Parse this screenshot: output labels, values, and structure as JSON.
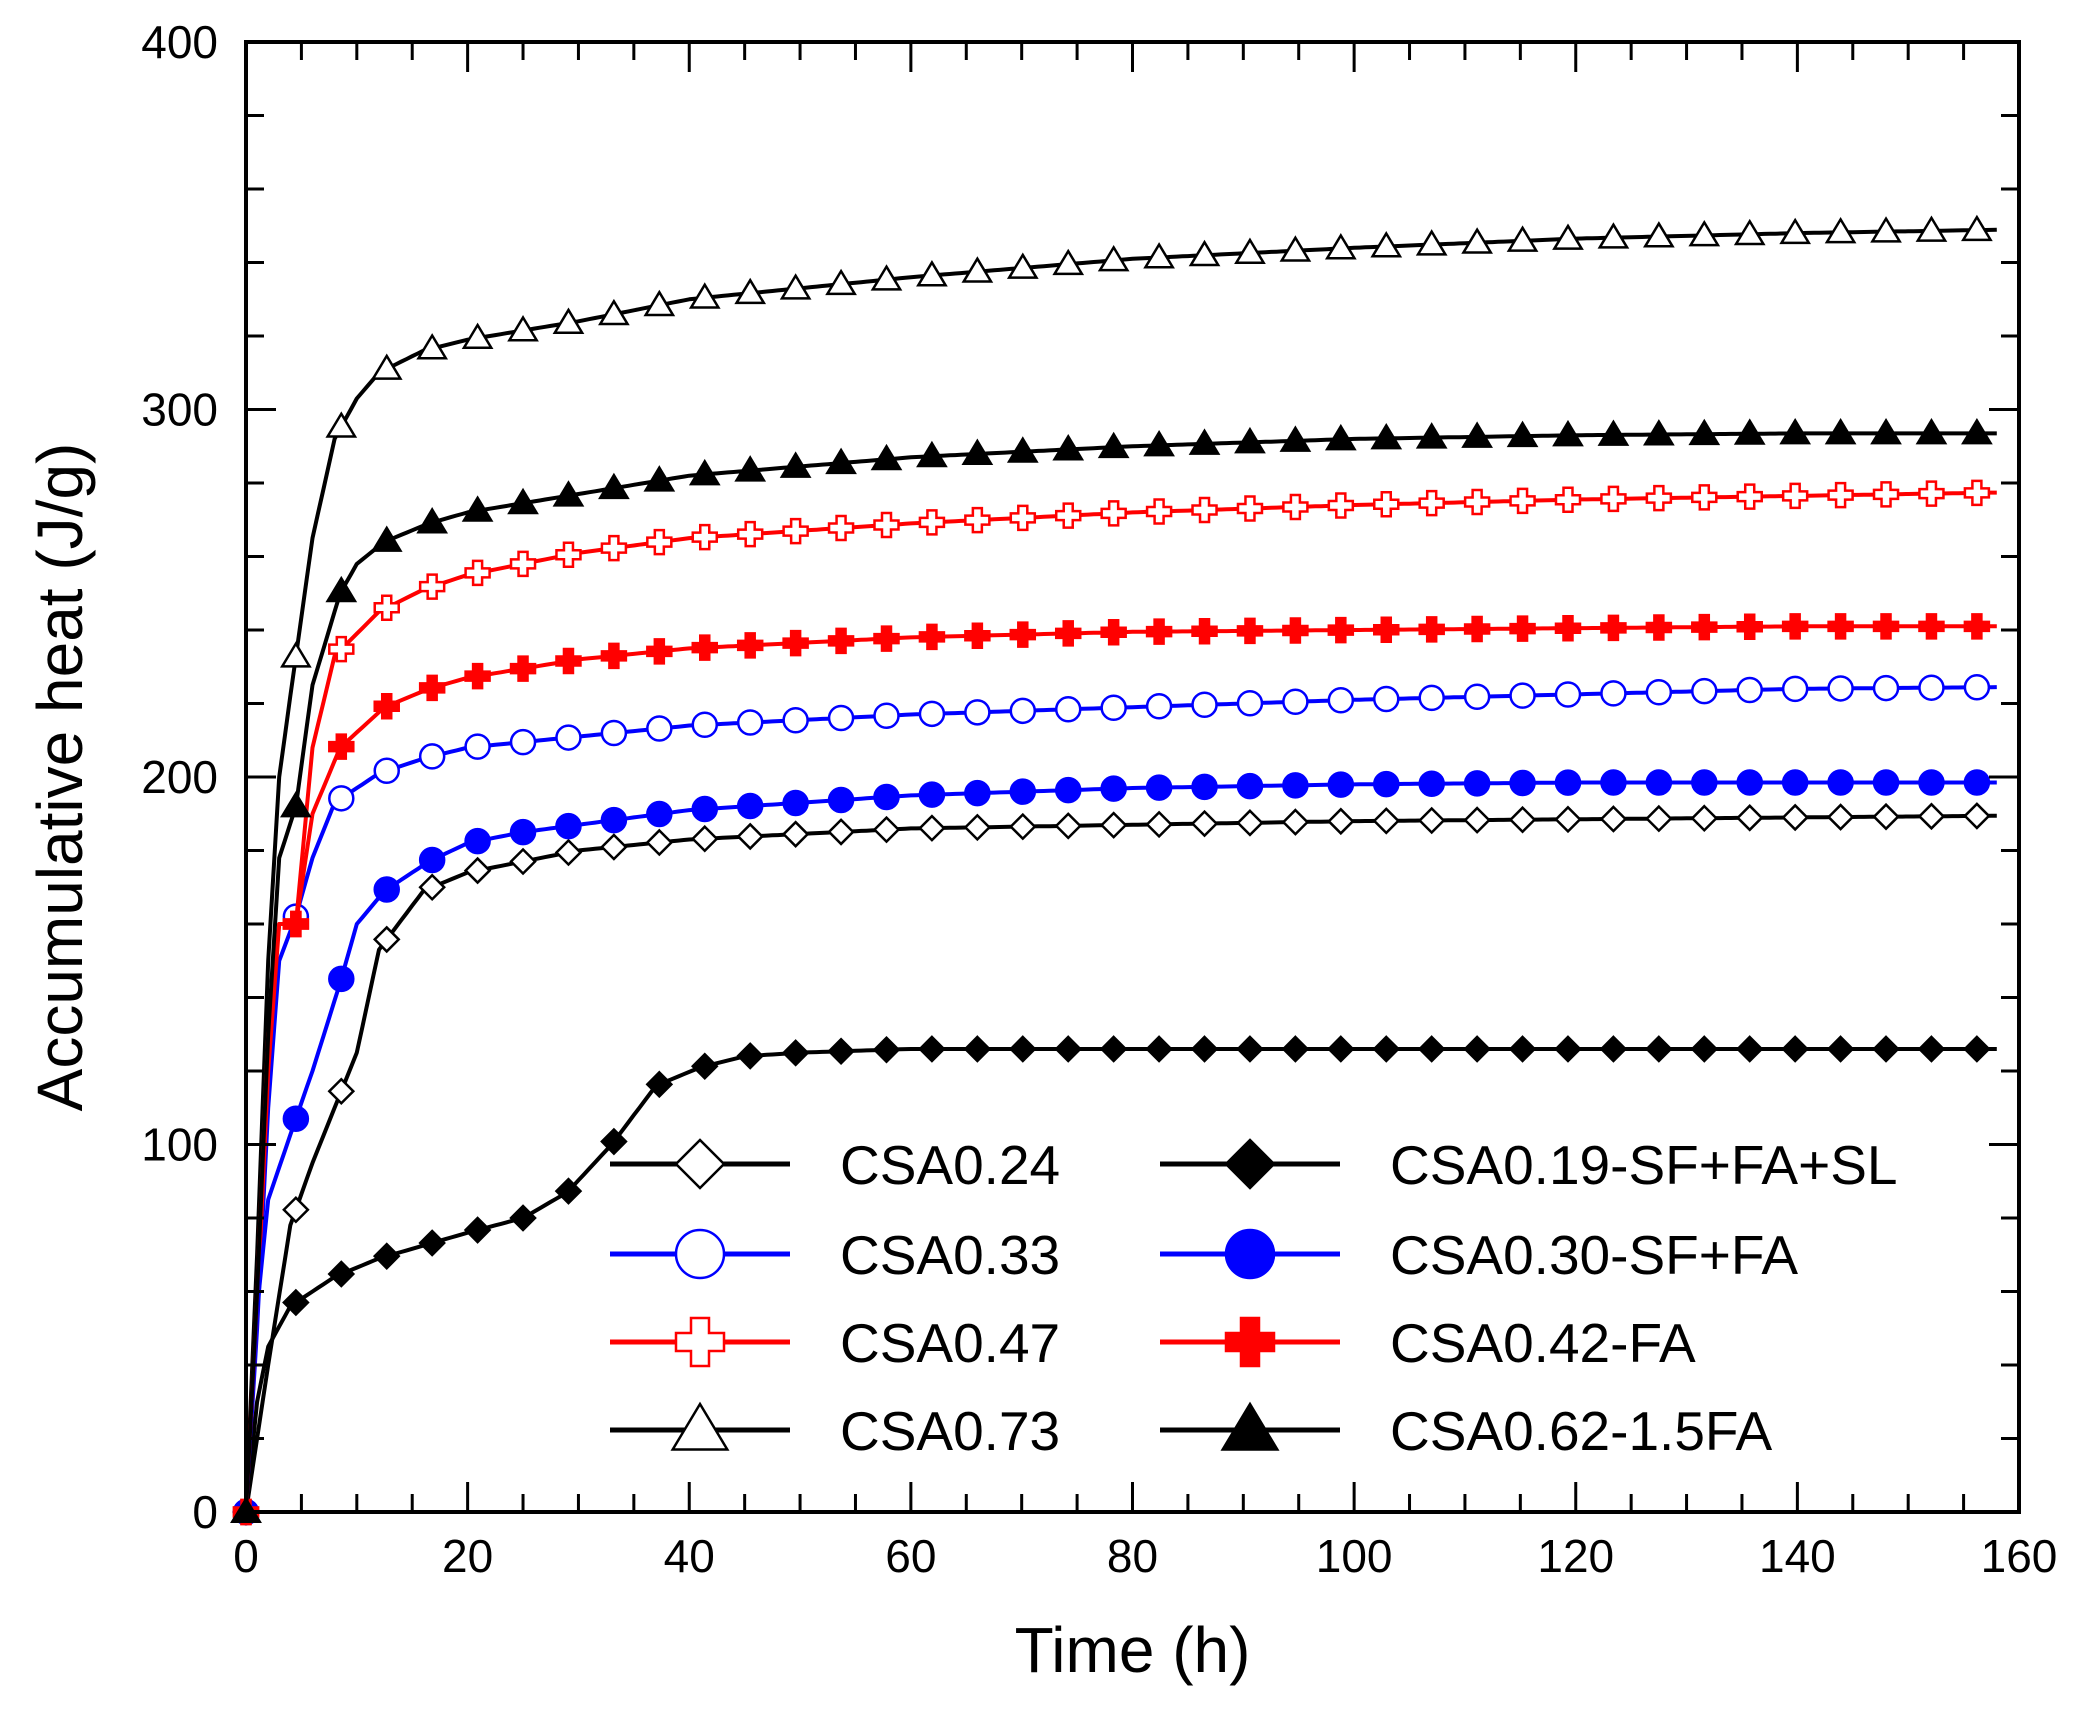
{
  "chart_data": {
    "type": "line",
    "title": "",
    "xlabel": "Time (h)",
    "ylabel": "Accumulative heat (J/g)",
    "xlim": [
      0,
      160
    ],
    "ylim": [
      0,
      400
    ],
    "xticks": [
      0,
      20,
      40,
      60,
      80,
      100,
      120,
      140,
      160
    ],
    "yticks": [
      0,
      100,
      200,
      300,
      400
    ],
    "xtick_labels": [
      "0",
      "20",
      "40",
      "60",
      "80",
      "100",
      "120",
      "140",
      "160"
    ],
    "ytick_labels": [
      "0",
      "100",
      "200",
      "300",
      "400"
    ],
    "grid": false,
    "legend_position": "bottom-right",
    "series": [
      {
        "name": "CSA0.24",
        "color": "#000000",
        "marker": "diamond-open",
        "x": [
          0,
          2,
          4,
          6,
          8,
          10,
          12,
          16,
          20,
          30,
          40,
          60,
          80,
          100,
          120,
          140,
          160
        ],
        "y": [
          0,
          40,
          78,
          95,
          110,
          125,
          153,
          169,
          174,
          180,
          183,
          186,
          187,
          188,
          188.5,
          189,
          189.5
        ]
      },
      {
        "name": "CSA0.33",
        "color": "#0000ff",
        "marker": "circle-open",
        "x": [
          0,
          1,
          2,
          3,
          4.5,
          6,
          8,
          12,
          16,
          20,
          30,
          40,
          60,
          80,
          100,
          120,
          140,
          160
        ],
        "y": [
          0,
          50,
          110,
          150,
          162,
          178,
          193,
          201,
          205,
          208,
          211,
          214,
          217,
          219,
          221,
          222.5,
          224,
          224.5
        ]
      },
      {
        "name": "CSA0.47",
        "color": "#ff0000",
        "marker": "plus-open",
        "x": [
          0,
          1,
          2,
          3,
          4.5,
          6,
          8,
          12,
          16,
          20,
          30,
          40,
          60,
          80,
          100,
          120,
          140,
          160
        ],
        "y": [
          0,
          55,
          120,
          160,
          160,
          208,
          233,
          245,
          251,
          255,
          261,
          265,
          269,
          272,
          274,
          275.5,
          276.5,
          277.5
        ]
      },
      {
        "name": "CSA0.73",
        "color": "#000000",
        "marker": "triangle-open",
        "x": [
          0,
          1,
          2,
          3,
          4,
          6,
          8,
          10,
          12,
          16,
          20,
          30,
          40,
          60,
          80,
          100,
          120,
          140,
          160
        ],
        "y": [
          0,
          70,
          150,
          200,
          222,
          265,
          292,
          303,
          310,
          316,
          319,
          324,
          330,
          336,
          341,
          344,
          346.5,
          348,
          349
        ]
      },
      {
        "name": "CSA0.19-SF+FA+SL",
        "color": "#000000",
        "marker": "diamond-filled",
        "x": [
          0,
          1,
          2,
          4,
          8,
          12,
          16,
          20,
          25,
          29,
          33,
          37,
          41,
          45,
          50,
          60,
          80,
          100,
          120,
          140,
          160
        ],
        "y": [
          0,
          30,
          45,
          56,
          64,
          69,
          72.5,
          76,
          80,
          87,
          100,
          116,
          121,
          124,
          125,
          126,
          126,
          126,
          126,
          126,
          126
        ]
      },
      {
        "name": "CSA0.30-SF+FA",
        "color": "#0000ff",
        "marker": "circle-filled",
        "x": [
          0,
          1,
          2,
          4.5,
          6,
          8.5,
          10,
          12.5,
          16.5,
          20,
          25,
          30,
          40,
          50,
          60,
          80,
          100,
          120,
          140,
          160
        ],
        "y": [
          0,
          55,
          85,
          107,
          120,
          144,
          160,
          169,
          177,
          182,
          185,
          187,
          191,
          193,
          195,
          197,
          198,
          198.5,
          198.5,
          198.5
        ]
      },
      {
        "name": "CSA0.42-FA",
        "color": "#ff0000",
        "marker": "plus-filled",
        "x": [
          0,
          1,
          2,
          3,
          4.5,
          6,
          8.5,
          12.5,
          16.5,
          20,
          30,
          40,
          60,
          80,
          100,
          120,
          140,
          160
        ],
        "y": [
          0,
          60,
          130,
          160,
          160,
          190,
          208,
          219,
          224,
          227,
          232,
          235,
          238,
          239.5,
          240,
          240.5,
          241,
          241
        ]
      },
      {
        "name": "CSA0.62-1.5FA",
        "color": "#000000",
        "marker": "triangle-filled",
        "x": [
          0,
          1,
          2,
          3,
          4.5,
          6,
          8.5,
          10,
          12.5,
          16.5,
          20,
          30,
          40,
          60,
          80,
          100,
          120,
          140,
          160
        ],
        "y": [
          0,
          60,
          130,
          178,
          192,
          225,
          250,
          258,
          264,
          269,
          272,
          277,
          282,
          287,
          290,
          292,
          293,
          293.5,
          293.5
        ]
      }
    ]
  }
}
